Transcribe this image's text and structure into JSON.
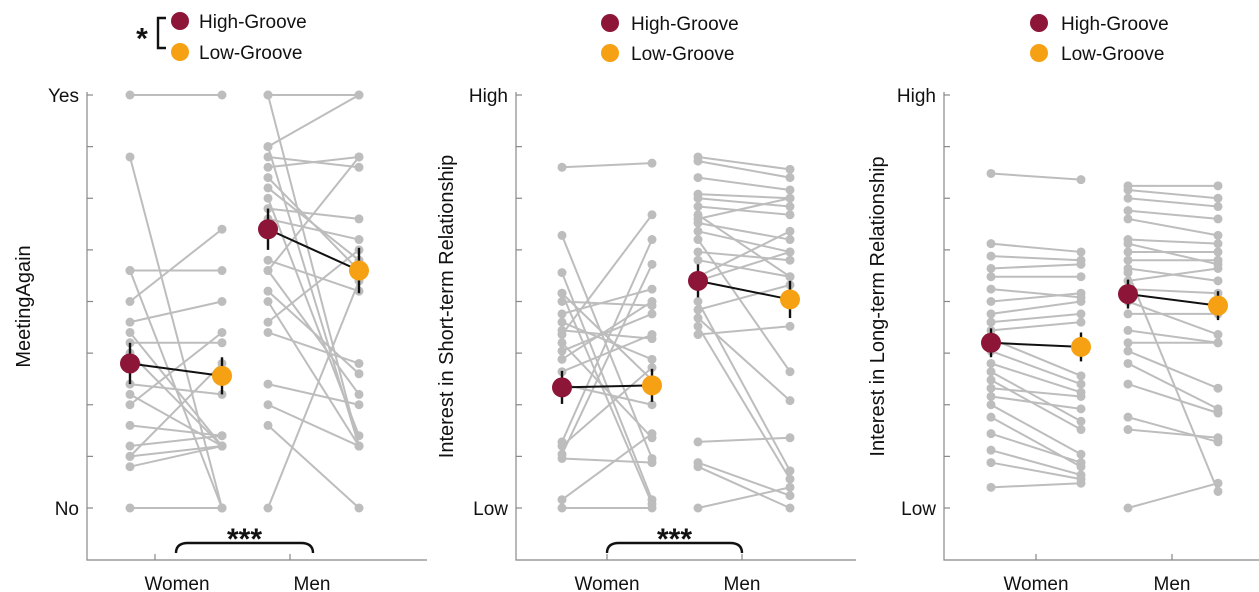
{
  "colors": {
    "high": "#8c1538",
    "low": "#f5a113",
    "individual": "#bdbdbd"
  },
  "chart_data": [
    {
      "type": "line",
      "ylabel": "MeetingAgain",
      "categories": [
        "Women",
        "Men"
      ],
      "ylim": [
        0,
        1
      ],
      "ytick_labels": [
        {
          "value": 1,
          "label": "Yes"
        },
        {
          "value": 0,
          "label": "No"
        }
      ],
      "legend": {
        "entries": [
          "High-Groove",
          "Low-Groove"
        ],
        "bracket_label": "*"
      },
      "sig": {
        "label": "***",
        "between": [
          "Women",
          "Men"
        ]
      },
      "series": [
        {
          "name": "High-Groove",
          "group": "Women",
          "mean": 0.35,
          "err": 0.05
        },
        {
          "name": "Low-Groove",
          "group": "Women",
          "mean": 0.32,
          "err": 0.045
        },
        {
          "name": "High-Groove",
          "group": "Men",
          "mean": 0.675,
          "err": 0.05
        },
        {
          "name": "Low-Groove",
          "group": "Men",
          "mean": 0.575,
          "err": 0.055
        }
      ],
      "individual": {
        "Women": [
          [
            1.0,
            1.0
          ],
          [
            0.85,
            0.0
          ],
          [
            0.575,
            0.0
          ],
          [
            0.575,
            0.575
          ],
          [
            0.5,
            0.675
          ],
          [
            0.45,
            0.5
          ],
          [
            0.425,
            0.15
          ],
          [
            0.4,
            0.4
          ],
          [
            0.375,
            0.15
          ],
          [
            0.3,
            0.275
          ],
          [
            0.275,
            0.15
          ],
          [
            0.25,
            0.425
          ],
          [
            0.2,
            0.175
          ],
          [
            0.15,
            0.175
          ],
          [
            0.125,
            0.35
          ],
          [
            0.125,
            0.15
          ],
          [
            0.1,
            0.15
          ],
          [
            0.0,
            0.0
          ]
        ],
        "Men": [
          [
            1.0,
            1.0
          ],
          [
            1.0,
            0.15
          ],
          [
            0.875,
            1.0
          ],
          [
            0.875,
            0.15
          ],
          [
            0.85,
            0.825
          ],
          [
            0.825,
            0.85
          ],
          [
            0.8,
            0.575
          ],
          [
            0.775,
            0.6
          ],
          [
            0.75,
            0.175
          ],
          [
            0.725,
            0.7
          ],
          [
            0.7,
            0.65
          ],
          [
            0.675,
            0.575
          ],
          [
            0.6,
            0.525
          ],
          [
            0.575,
            0.85
          ],
          [
            0.525,
            0.325
          ],
          [
            0.5,
            0.15
          ],
          [
            0.45,
            0.625
          ],
          [
            0.425,
            0.35
          ],
          [
            0.3,
            0.25
          ],
          [
            0.25,
            0.15
          ],
          [
            0.2,
            0.0
          ],
          [
            0.0,
            0.55
          ],
          [
            0.575,
            0.275
          ]
        ]
      }
    },
    {
      "type": "line",
      "ylabel": "Interest in Short-term Relationship",
      "categories": [
        "Women",
        "Men"
      ],
      "ylim": [
        -0.125,
        1
      ],
      "ytick_labels": [
        {
          "value": 1,
          "label": "High"
        },
        {
          "value": 0,
          "label": "Low"
        }
      ],
      "legend": {
        "entries": [
          "High-Groove",
          "Low-Groove"
        ]
      },
      "sig": {
        "label": "***",
        "between": [
          "Women",
          "Men"
        ]
      },
      "series": [
        {
          "name": "High-Groove",
          "group": "Women",
          "mean": 0.292,
          "err": 0.04
        },
        {
          "name": "Low-Groove",
          "group": "Women",
          "mean": 0.297,
          "err": 0.04
        },
        {
          "name": "High-Groove",
          "group": "Men",
          "mean": 0.55,
          "err": 0.04
        },
        {
          "name": "Low-Groove",
          "group": "Men",
          "mean": 0.505,
          "err": 0.045
        }
      ],
      "individual": {
        "Women": [
          [
            0.825,
            0.835
          ],
          [
            0.66,
            0.12
          ],
          [
            0.57,
            0.02
          ],
          [
            0.52,
            0.01
          ],
          [
            0.5,
            0.49
          ],
          [
            0.47,
            0.53
          ],
          [
            0.45,
            0.36
          ],
          [
            0.43,
            0.41
          ],
          [
            0.42,
            0.71
          ],
          [
            0.4,
            0.17
          ],
          [
            0.38,
            0.47
          ],
          [
            0.36,
            0.5
          ],
          [
            0.33,
            0.42
          ],
          [
            0.3,
            0.25
          ],
          [
            0.15,
            0.34
          ],
          [
            0.13,
            0.59
          ],
          [
            0.12,
            0.11
          ],
          [
            0.02,
            0.18
          ],
          [
            0.0,
            0.0
          ],
          [
            0.52,
            0.31
          ],
          [
            0.16,
            0.65
          ]
        ],
        "Men": [
          [
            0.85,
            0.82
          ],
          [
            0.84,
            0.8
          ],
          [
            0.8,
            0.77
          ],
          [
            0.76,
            0.75
          ],
          [
            0.75,
            0.73
          ],
          [
            0.73,
            0.71
          ],
          [
            0.71,
            0.56
          ],
          [
            0.7,
            0.75
          ],
          [
            0.67,
            0.62
          ],
          [
            0.65,
            0.33
          ],
          [
            0.62,
            0.6
          ],
          [
            0.6,
            0.56
          ],
          [
            0.56,
            0.67
          ],
          [
            0.55,
            0.62
          ],
          [
            0.5,
            0.09
          ],
          [
            0.48,
            0.54
          ],
          [
            0.46,
            0.26
          ],
          [
            0.44,
            0.07
          ],
          [
            0.42,
            0.44
          ],
          [
            0.16,
            0.17
          ],
          [
            0.11,
            0.03
          ],
          [
            0.1,
            0.0
          ],
          [
            0.0,
            0.05
          ],
          [
            0.69,
            0.65
          ]
        ]
      }
    },
    {
      "type": "line",
      "ylabel": "Interest in Long-term Relationship",
      "categories": [
        "Women",
        "Men"
      ],
      "ylim": [
        -0.125,
        1
      ],
      "ytick_labels": [
        {
          "value": 1,
          "label": "High"
        },
        {
          "value": 0,
          "label": "Low"
        }
      ],
      "legend": {
        "entries": [
          "High-Groove",
          "Low-Groove"
        ]
      },
      "series": [
        {
          "name": "High-Groove",
          "group": "Women",
          "mean": 0.4,
          "err": 0.035
        },
        {
          "name": "Low-Groove",
          "group": "Women",
          "mean": 0.39,
          "err": 0.035
        },
        {
          "name": "High-Groove",
          "group": "Men",
          "mean": 0.518,
          "err": 0.035
        },
        {
          "name": "Low-Groove",
          "group": "Men",
          "mean": 0.49,
          "err": 0.035
        }
      ],
      "individual": {
        "Women": [
          [
            0.81,
            0.795
          ],
          [
            0.64,
            0.62
          ],
          [
            0.61,
            0.6
          ],
          [
            0.58,
            0.59
          ],
          [
            0.56,
            0.56
          ],
          [
            0.53,
            0.51
          ],
          [
            0.5,
            0.52
          ],
          [
            0.47,
            0.5
          ],
          [
            0.45,
            0.47
          ],
          [
            0.43,
            0.45
          ],
          [
            0.41,
            0.32
          ],
          [
            0.38,
            0.3
          ],
          [
            0.35,
            0.28
          ],
          [
            0.33,
            0.21
          ],
          [
            0.31,
            0.19
          ],
          [
            0.29,
            0.27
          ],
          [
            0.27,
            0.24
          ],
          [
            0.25,
            0.13
          ],
          [
            0.22,
            0.1
          ],
          [
            0.18,
            0.11
          ],
          [
            0.14,
            0.08
          ],
          [
            0.11,
            0.07
          ],
          [
            0.05,
            0.06
          ]
        ],
        "Men": [
          [
            0.78,
            0.78
          ],
          [
            0.77,
            0.75
          ],
          [
            0.75,
            0.73
          ],
          [
            0.72,
            0.7
          ],
          [
            0.7,
            0.66
          ],
          [
            0.65,
            0.64
          ],
          [
            0.64,
            0.59
          ],
          [
            0.62,
            0.62
          ],
          [
            0.6,
            0.6
          ],
          [
            0.58,
            0.55
          ],
          [
            0.57,
            0.04
          ],
          [
            0.55,
            0.58
          ],
          [
            0.53,
            0.52
          ],
          [
            0.5,
            0.42
          ],
          [
            0.47,
            0.47
          ],
          [
            0.43,
            0.4
          ],
          [
            0.4,
            0.4
          ],
          [
            0.38,
            0.29
          ],
          [
            0.35,
            0.24
          ],
          [
            0.3,
            0.23
          ],
          [
            0.22,
            0.16
          ],
          [
            0.19,
            0.17
          ],
          [
            0.0,
            0.06
          ]
        ]
      }
    }
  ]
}
